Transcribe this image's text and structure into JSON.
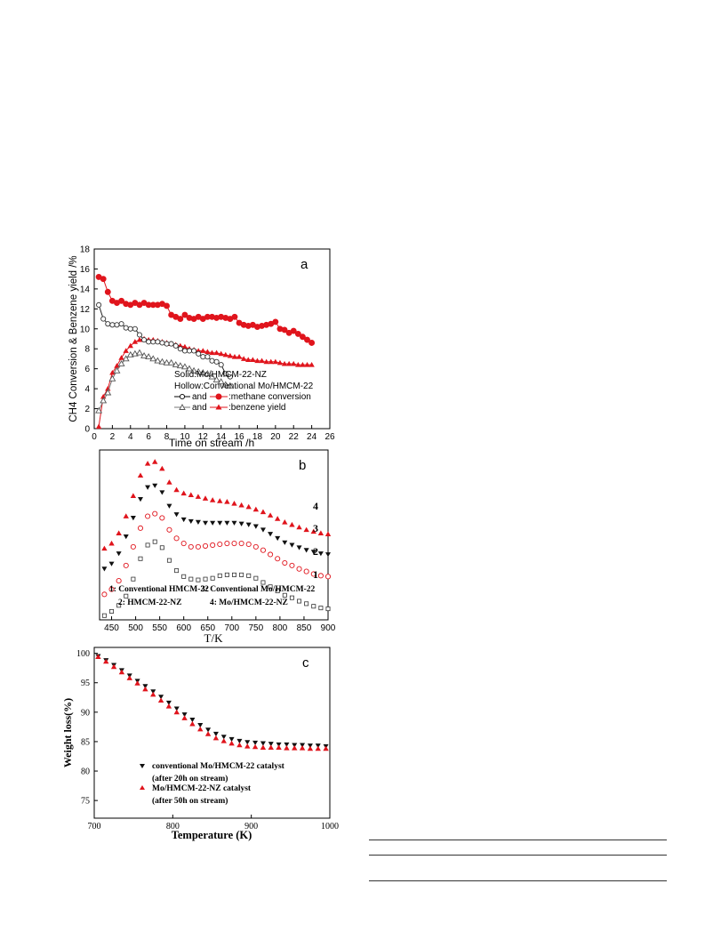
{
  "chart_data": [
    {
      "panel": "a",
      "type": "line",
      "xlabel": "Time on stream /h",
      "ylabel": "CH4 Conversion & Benzene yield /%",
      "xlim": [
        0,
        26
      ],
      "ylim": [
        0,
        18
      ],
      "xticks": [
        0,
        2,
        4,
        6,
        8,
        10,
        12,
        14,
        16,
        18,
        20,
        22,
        24,
        26
      ],
      "yticks": [
        0,
        2,
        4,
        6,
        8,
        10,
        12,
        14,
        16,
        18
      ],
      "legend_text": [
        "Solid:Mo/HMCM-22-NZ",
        "Hollow:Conventional Mo/HMCM-22"
      ],
      "legend_entries": [
        {
          "a": "and",
          "b": ":methane conversion"
        },
        {
          "a": "and",
          "b": ":benzene yield"
        }
      ],
      "legend_position": "bottom-right",
      "series": [
        {
          "style": "solid-red-circle",
          "x": [
            0.5,
            1.0,
            1.5,
            2.0,
            2.5,
            3.0,
            3.5,
            4.0,
            4.5,
            5.0,
            5.5,
            6.0,
            6.5,
            7.0,
            7.5,
            8.0,
            8.5,
            9.0,
            9.5,
            10.0,
            10.5,
            11.0,
            11.5,
            12.0,
            12.5,
            13.0,
            13.5,
            14.0,
            14.5,
            15.0,
            15.5,
            16.0,
            16.5,
            17.0,
            17.5,
            18.0,
            18.5,
            19.0,
            19.5,
            20.0,
            20.5,
            21.0,
            21.5,
            22.0,
            22.5,
            23.0,
            23.5,
            24.0
          ],
          "y": [
            15.2,
            15.0,
            13.7,
            12.8,
            12.6,
            12.8,
            12.5,
            12.4,
            12.6,
            12.4,
            12.6,
            12.4,
            12.4,
            12.4,
            12.5,
            12.3,
            11.4,
            11.2,
            11.0,
            11.4,
            11.1,
            11.0,
            11.2,
            11.0,
            11.2,
            11.2,
            11.1,
            11.2,
            11.1,
            11.0,
            11.2,
            10.6,
            10.4,
            10.3,
            10.4,
            10.2,
            10.3,
            10.4,
            10.5,
            10.7,
            10.0,
            9.9,
            9.6,
            9.8,
            9.5,
            9.2,
            8.9,
            8.6
          ]
        },
        {
          "style": "solid-red-triangle",
          "x": [
            0.5,
            1.0,
            1.5,
            2.0,
            2.5,
            3.0,
            3.5,
            4.0,
            4.5,
            5.0,
            5.5,
            6.0,
            6.5,
            7.0,
            7.5,
            8.0,
            8.5,
            9.0,
            9.5,
            10.0,
            10.5,
            11.0,
            11.5,
            12.0,
            12.5,
            13.0,
            13.5,
            14.0,
            14.5,
            15.0,
            15.5,
            16.0,
            16.5,
            17.0,
            17.5,
            18.0,
            18.5,
            19.0,
            19.5,
            20.0,
            20.5,
            21.0,
            21.5,
            22.0,
            22.5,
            23.0,
            23.5,
            24.0
          ],
          "y": [
            0.2,
            3.2,
            4.0,
            5.6,
            6.3,
            7.1,
            7.8,
            8.3,
            8.7,
            8.9,
            9.0,
            8.9,
            8.9,
            8.8,
            8.7,
            8.6,
            8.5,
            8.4,
            8.3,
            8.2,
            8.0,
            7.9,
            7.8,
            7.8,
            7.7,
            7.6,
            7.6,
            7.5,
            7.4,
            7.3,
            7.2,
            7.2,
            7.0,
            6.9,
            6.9,
            6.8,
            6.8,
            6.7,
            6.7,
            6.7,
            6.6,
            6.5,
            6.5,
            6.5,
            6.4,
            6.4,
            6.4,
            6.4
          ]
        },
        {
          "style": "hollow-black-circle",
          "x": [
            0.5,
            1.0,
            1.5,
            2.0,
            2.5,
            3.0,
            3.5,
            4.0,
            4.5,
            5.0,
            5.5,
            6.0,
            6.5,
            7.0,
            7.5,
            8.0,
            8.5,
            9.0,
            9.5,
            10.0,
            10.5,
            11.0,
            11.5,
            12.0,
            12.5,
            13.0,
            13.5,
            14.0,
            14.5,
            15.0
          ],
          "y": [
            12.4,
            11.0,
            10.5,
            10.4,
            10.4,
            10.5,
            10.1,
            10.0,
            10.0,
            9.4,
            8.9,
            8.7,
            8.7,
            8.7,
            8.6,
            8.5,
            8.5,
            8.3,
            8.0,
            7.8,
            7.8,
            7.8,
            7.5,
            7.2,
            7.2,
            6.8,
            6.7,
            6.4,
            5.5,
            5.2
          ]
        },
        {
          "style": "hollow-black-triangle",
          "x": [
            0.5,
            1.0,
            1.5,
            2.0,
            2.5,
            3.0,
            3.5,
            4.0,
            4.5,
            5.0,
            5.5,
            6.0,
            6.5,
            7.0,
            7.5,
            8.0,
            8.5,
            9.0,
            9.5,
            10.0,
            10.5,
            11.0,
            11.5,
            12.0,
            12.5,
            13.0,
            13.5,
            14.0,
            14.5,
            15.0
          ],
          "y": [
            1.8,
            2.8,
            3.6,
            5.0,
            5.8,
            6.5,
            7.0,
            7.4,
            7.5,
            7.6,
            7.3,
            7.2,
            7.0,
            6.8,
            6.7,
            6.6,
            6.6,
            6.4,
            6.3,
            6.2,
            6.0,
            5.8,
            5.7,
            5.6,
            5.5,
            5.2,
            4.9,
            4.7,
            4.4,
            4.3
          ]
        }
      ],
      "annotation": "a"
    },
    {
      "panel": "b",
      "type": "scatter",
      "xlabel": "T/K",
      "xlim": [
        425,
        900
      ],
      "xticks": [
        450,
        500,
        550,
        600,
        650,
        700,
        750,
        800,
        850,
        900
      ],
      "curve_labels": [
        "4",
        "3",
        "2",
        "1"
      ],
      "legend_labels": [
        "1: Conventional HMCM-22",
        "2: HMCM-22-NZ",
        "3: Conventional Mo/HMCM-22",
        "4: Mo/HMCM-22-NZ"
      ],
      "legend_position": "bottom-left",
      "series": [
        {
          "style": "hollow-black-square",
          "x": [
            435,
            450,
            465,
            480,
            495,
            510,
            525,
            540,
            555,
            570,
            585,
            600,
            615,
            630,
            645,
            660,
            675,
            690,
            705,
            720,
            735,
            750,
            765,
            780,
            795,
            810,
            825,
            840,
            855,
            870,
            885,
            900
          ],
          "y": [
            0.05,
            0.1,
            0.17,
            0.28,
            0.48,
            0.72,
            0.88,
            0.92,
            0.85,
            0.7,
            0.58,
            0.51,
            0.48,
            0.47,
            0.48,
            0.49,
            0.52,
            0.53,
            0.53,
            0.53,
            0.52,
            0.49,
            0.44,
            0.39,
            0.34,
            0.29,
            0.26,
            0.22,
            0.19,
            0.16,
            0.14,
            0.13
          ]
        },
        {
          "style": "hollow-red-circle",
          "x": [
            435,
            450,
            465,
            480,
            495,
            510,
            525,
            540,
            555,
            570,
            585,
            600,
            615,
            630,
            645,
            660,
            675,
            690,
            705,
            720,
            735,
            750,
            765,
            780,
            795,
            810,
            825,
            840,
            855,
            870,
            885,
            900
          ],
          "y": [
            0.3,
            0.36,
            0.46,
            0.64,
            0.86,
            1.08,
            1.22,
            1.25,
            1.2,
            1.06,
            0.96,
            0.9,
            0.86,
            0.86,
            0.87,
            0.88,
            0.89,
            0.9,
            0.9,
            0.9,
            0.89,
            0.86,
            0.82,
            0.77,
            0.72,
            0.67,
            0.64,
            0.6,
            0.57,
            0.54,
            0.52,
            0.51
          ]
        },
        {
          "style": "solid-black-triangle-down",
          "x": [
            435,
            450,
            465,
            480,
            495,
            510,
            525,
            540,
            555,
            570,
            585,
            600,
            615,
            630,
            645,
            660,
            675,
            690,
            705,
            720,
            735,
            750,
            765,
            780,
            795,
            810,
            825,
            840,
            855,
            870,
            885,
            900
          ],
          "y": [
            0.6,
            0.66,
            0.78,
            0.98,
            1.2,
            1.42,
            1.56,
            1.58,
            1.5,
            1.34,
            1.24,
            1.18,
            1.16,
            1.15,
            1.14,
            1.14,
            1.14,
            1.14,
            1.14,
            1.13,
            1.12,
            1.1,
            1.06,
            1.01,
            0.96,
            0.91,
            0.88,
            0.85,
            0.82,
            0.8,
            0.78,
            0.77
          ]
        },
        {
          "style": "solid-red-triangle-up",
          "x": [
            435,
            450,
            465,
            480,
            495,
            510,
            525,
            540,
            555,
            570,
            585,
            600,
            615,
            630,
            645,
            660,
            675,
            690,
            705,
            720,
            735,
            750,
            765,
            780,
            795,
            810,
            825,
            840,
            855,
            870,
            885,
            900
          ],
          "y": [
            0.84,
            0.9,
            1.02,
            1.22,
            1.46,
            1.7,
            1.84,
            1.86,
            1.78,
            1.62,
            1.53,
            1.49,
            1.47,
            1.45,
            1.43,
            1.41,
            1.4,
            1.39,
            1.37,
            1.35,
            1.33,
            1.3,
            1.27,
            1.23,
            1.19,
            1.15,
            1.12,
            1.09,
            1.06,
            1.04,
            1.02,
            1.01
          ]
        }
      ],
      "annotation": "b"
    },
    {
      "panel": "c",
      "type": "scatter",
      "xlabel": "Temperature (K)",
      "ylabel": "Weight loss(%)",
      "xlim": [
        700,
        1000
      ],
      "ylim": [
        72,
        101
      ],
      "xticks": [
        700,
        800,
        900,
        1000
      ],
      "yticks": [
        75,
        80,
        85,
        90,
        95,
        100
      ],
      "legend_entries": [
        {
          "label": "conventional Mo/HMCM-22 catalyst",
          "sublabel": "(after 20h on stream)"
        },
        {
          "label": "Mo/HMCM-22-NZ catalyst",
          "sublabel": "(after 50h on stream)"
        }
      ],
      "legend_position": "bottom-left",
      "series": [
        {
          "style": "solid-black-triangle-down",
          "x": [
            705,
            715,
            725,
            735,
            745,
            755,
            765,
            775,
            785,
            795,
            805,
            815,
            825,
            835,
            845,
            855,
            865,
            875,
            885,
            895,
            905,
            915,
            925,
            935,
            945,
            955,
            965,
            975,
            985,
            995
          ],
          "y": [
            99.5,
            98.8,
            98.0,
            97.1,
            96.2,
            95.3,
            94.4,
            93.5,
            92.6,
            91.6,
            90.6,
            89.6,
            88.7,
            87.8,
            87.0,
            86.3,
            85.8,
            85.4,
            85.1,
            84.9,
            84.8,
            84.7,
            84.6,
            84.5,
            84.5,
            84.4,
            84.4,
            84.3,
            84.3,
            84.2
          ]
        },
        {
          "style": "solid-red-triangle-up",
          "x": [
            705,
            715,
            725,
            735,
            745,
            755,
            765,
            775,
            785,
            795,
            805,
            815,
            825,
            835,
            845,
            855,
            865,
            875,
            885,
            895,
            905,
            915,
            925,
            935,
            945,
            955,
            965,
            975,
            985,
            995
          ],
          "y": [
            99.4,
            98.6,
            97.7,
            96.8,
            95.8,
            94.9,
            93.9,
            93.0,
            92.0,
            91.0,
            90.0,
            89.0,
            88.0,
            87.1,
            86.3,
            85.6,
            85.1,
            84.7,
            84.4,
            84.2,
            84.1,
            84.0,
            84.0,
            84.0,
            83.9,
            83.9,
            83.9,
            83.8,
            83.8,
            83.8
          ]
        }
      ],
      "annotation": "c"
    }
  ]
}
